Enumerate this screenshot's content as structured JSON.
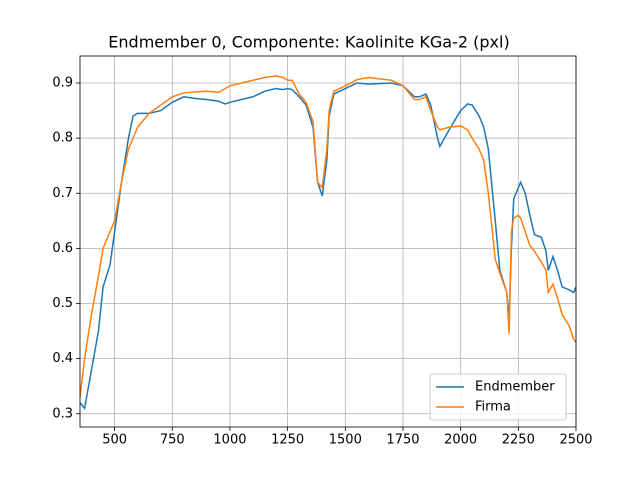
{
  "chart_data": {
    "type": "line",
    "title": "Endmember 0, Componente: Kaolinite KGa-2 (pxl)",
    "x": [
      350,
      370,
      400,
      430,
      450,
      480,
      500,
      530,
      560,
      580,
      600,
      650,
      700,
      750,
      800,
      850,
      900,
      950,
      980,
      1000,
      1100,
      1150,
      1200,
      1230,
      1250,
      1270,
      1300,
      1330,
      1360,
      1380,
      1400,
      1420,
      1430,
      1450,
      1500,
      1550,
      1600,
      1700,
      1750,
      1800,
      1820,
      1850,
      1870,
      1900,
      1910,
      1950,
      2000,
      2030,
      2050,
      2080,
      2100,
      2120,
      2150,
      2170,
      2200,
      2210,
      2220,
      2230,
      2250,
      2260,
      2280,
      2300,
      2320,
      2350,
      2370,
      2380,
      2400,
      2420,
      2440,
      2470,
      2490,
      2500
    ],
    "series": [
      {
        "name": "Endmember",
        "color": "#1f77b4",
        "values": [
          0.32,
          0.31,
          0.38,
          0.45,
          0.53,
          0.57,
          0.63,
          0.72,
          0.8,
          0.84,
          0.845,
          0.845,
          0.85,
          0.865,
          0.875,
          0.872,
          0.87,
          0.867,
          0.862,
          0.865,
          0.875,
          0.885,
          0.89,
          0.888,
          0.89,
          0.888,
          0.875,
          0.86,
          0.82,
          0.72,
          0.695,
          0.76,
          0.84,
          0.88,
          0.89,
          0.9,
          0.898,
          0.9,
          0.895,
          0.875,
          0.875,
          0.88,
          0.86,
          0.8,
          0.785,
          0.815,
          0.85,
          0.862,
          0.86,
          0.84,
          0.82,
          0.78,
          0.65,
          0.56,
          0.52,
          0.47,
          0.6,
          0.69,
          0.71,
          0.72,
          0.7,
          0.66,
          0.625,
          0.62,
          0.595,
          0.56,
          0.585,
          0.56,
          0.53,
          0.525,
          0.52,
          0.53
        ]
      },
      {
        "name": "Firma",
        "color": "#ff7f0e",
        "values": [
          0.33,
          0.4,
          0.48,
          0.55,
          0.6,
          0.63,
          0.65,
          0.72,
          0.78,
          0.8,
          0.82,
          0.845,
          0.86,
          0.875,
          0.882,
          0.884,
          0.885,
          0.883,
          0.89,
          0.895,
          0.905,
          0.91,
          0.913,
          0.91,
          0.905,
          0.905,
          0.88,
          0.865,
          0.83,
          0.72,
          0.71,
          0.78,
          0.85,
          0.885,
          0.895,
          0.906,
          0.91,
          0.905,
          0.895,
          0.87,
          0.87,
          0.875,
          0.85,
          0.82,
          0.815,
          0.82,
          0.822,
          0.815,
          0.8,
          0.78,
          0.76,
          0.7,
          0.58,
          0.555,
          0.52,
          0.445,
          0.63,
          0.655,
          0.66,
          0.655,
          0.63,
          0.605,
          0.595,
          0.575,
          0.56,
          0.52,
          0.535,
          0.51,
          0.48,
          0.46,
          0.435,
          0.43
        ]
      }
    ],
    "xlim": [
      350,
      2500
    ],
    "ylim": [
      0.276,
      0.949
    ],
    "xticks": [
      500,
      750,
      1000,
      1250,
      1500,
      1750,
      2000,
      2250,
      2500
    ],
    "yticks": [
      0.3,
      0.4,
      0.5,
      0.6,
      0.7,
      0.8,
      0.9
    ],
    "grid": true,
    "legend": "lower right"
  }
}
